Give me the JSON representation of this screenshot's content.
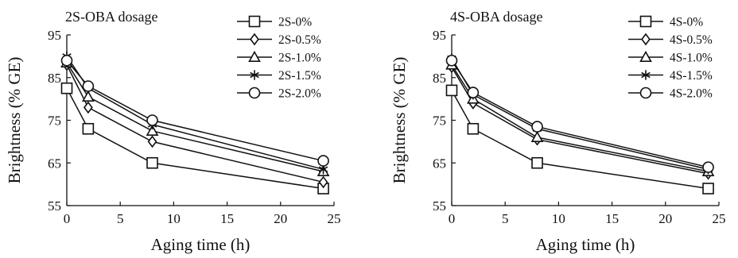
{
  "chart_data": [
    {
      "type": "line",
      "title": "2S-OBA dosage",
      "xlabel": "Aging time (h)",
      "ylabel": "Brightness (% GE)",
      "xlim": [
        0,
        25
      ],
      "ylim": [
        55,
        95
      ],
      "xticks": [
        0,
        5,
        10,
        15,
        20,
        25
      ],
      "yticks": [
        55,
        65,
        75,
        85,
        95
      ],
      "grid": false,
      "legend": "top-right",
      "line_color": "#111111",
      "x": [
        0,
        2,
        8,
        24
      ],
      "series": [
        {
          "name": "2S-0%",
          "marker": "square",
          "values": [
            82.5,
            73.0,
            65.0,
            59.0
          ]
        },
        {
          "name": "2S-0.5%",
          "marker": "diamond",
          "values": [
            88.0,
            78.0,
            70.0,
            60.5
          ]
        },
        {
          "name": "2S-1.0%",
          "marker": "triangle",
          "values": [
            88.5,
            80.5,
            72.5,
            63.0
          ]
        },
        {
          "name": "2S-1.5%",
          "marker": "asterisk",
          "values": [
            90.0,
            82.5,
            74.0,
            63.5
          ]
        },
        {
          "name": "2S-2.0%",
          "marker": "circle",
          "values": [
            89.0,
            83.0,
            75.0,
            65.5
          ]
        }
      ]
    },
    {
      "type": "line",
      "title": "4S-OBA dosage",
      "xlabel": "Aging time (h)",
      "ylabel": "Brightness (% GE)",
      "xlim": [
        0,
        25
      ],
      "ylim": [
        55,
        95
      ],
      "xticks": [
        0,
        5,
        10,
        15,
        20,
        25
      ],
      "yticks": [
        55,
        65,
        75,
        85,
        95
      ],
      "grid": false,
      "legend": "top-right",
      "line_color": "#111111",
      "x": [
        0,
        2,
        8,
        24
      ],
      "series": [
        {
          "name": "4S-0%",
          "marker": "square",
          "values": [
            82.0,
            73.0,
            65.0,
            59.0
          ]
        },
        {
          "name": "4S-0.5%",
          "marker": "diamond",
          "values": [
            87.5,
            79.0,
            70.5,
            62.5
          ]
        },
        {
          "name": "4S-1.0%",
          "marker": "triangle",
          "values": [
            88.0,
            80.0,
            71.0,
            63.0
          ]
        },
        {
          "name": "4S-1.5%",
          "marker": "asterisk",
          "values": [
            89.5,
            81.0,
            73.0,
            63.5
          ]
        },
        {
          "name": "4S-2.0%",
          "marker": "circle",
          "values": [
            89.0,
            81.5,
            73.5,
            64.0
          ]
        }
      ]
    }
  ]
}
